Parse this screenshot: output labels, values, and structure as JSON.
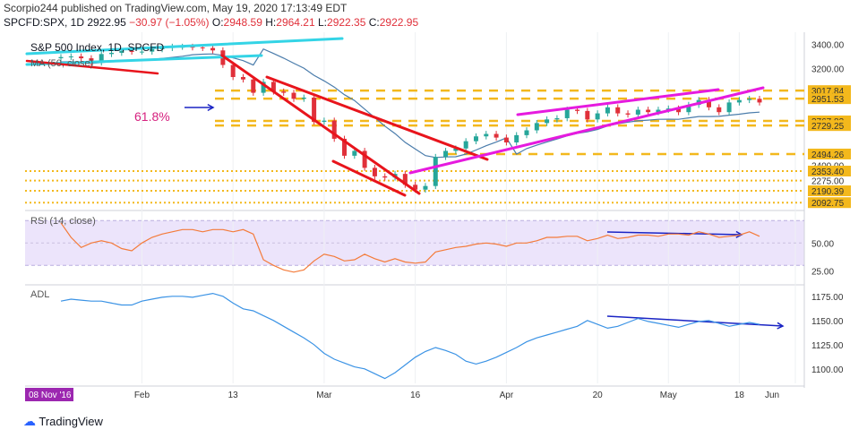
{
  "header": {
    "published": "Scorpio244 published on TradingView.com, May 19, 2020 17:13:49 EDT",
    "symbol": "SPCFD:SPX, 1D",
    "price": "2922.95",
    "change": "−30.97 (−1.05%)",
    "o": "O:",
    "o_val": "2948.59",
    "h": "H:",
    "h_val": "2964.21",
    "l": "L:",
    "l_val": "2922.35",
    "c": "C:",
    "c_val": "2922.95"
  },
  "footer": {
    "brand": "TradingView"
  },
  "colors": {
    "up": "#26a69a",
    "down": "#e0303a",
    "trend_red": "#e8141c",
    "trend_magenta": "#e61adf",
    "trend_cyan": "#34d4e6",
    "level_gold": "#f3b81c",
    "ma_line": "#4a7cab",
    "rsi_line": "#f47b3a",
    "rsi_band": "#ece4fb",
    "adl_line": "#3b93e5",
    "arrow_blue": "#1a24c4",
    "fib_text": "#d6217f",
    "date_badge": "#9c27b0"
  },
  "chart_data": [
    {
      "type": "candlestick",
      "title": "S&P 500 Index, 1D, SPCFD",
      "indicator_label": "MA (50, close)",
      "annotation": "61.8%",
      "price_levels": [
        "3400.00",
        "3200.00",
        "3017.84",
        "2951.53",
        "2767.83",
        "2729.25",
        "2494.26",
        "2400.00",
        "2353.40",
        "2275.00",
        "2190.39",
        "2092.75"
      ],
      "x_ticks": [
        "Feb",
        "13",
        "Mar",
        "16",
        "Apr",
        "20",
        "May",
        "18",
        "Jun"
      ],
      "date_badge": "08 Nov '16",
      "ylim": [
        2050,
        3500
      ],
      "closes": [
        3295,
        3300,
        3285,
        3250,
        3320,
        3330,
        3345,
        3340,
        3340,
        3360,
        3370,
        3380,
        3380,
        3375,
        3370,
        3350,
        3230,
        3130,
        3110,
        3000,
        3090,
        3010,
        3000,
        2950,
        2960,
        2760,
        2770,
        2620,
        2480,
        2520,
        2380,
        2310,
        2300,
        2330,
        2240,
        2200,
        2230,
        2470,
        2520,
        2540,
        2600,
        2640,
        2660,
        2630,
        2590,
        2650,
        2690,
        2750,
        2780,
        2790,
        2860,
        2850,
        2780,
        2830,
        2880,
        2830,
        2820,
        2860,
        2840,
        2860,
        2870,
        2840,
        2900,
        2940,
        2880,
        2840,
        2920,
        2940,
        2950,
        2920
      ]
    },
    {
      "type": "line",
      "title": "RSI (14, close)",
      "ylim": [
        15,
        75
      ],
      "y_ticks": [
        "50.00",
        "25.00"
      ],
      "band": [
        30,
        70
      ],
      "values": [
        68,
        55,
        46,
        50,
        52,
        50,
        45,
        43,
        50,
        55,
        58,
        60,
        62,
        62,
        60,
        62,
        62,
        60,
        62,
        58,
        35,
        30,
        26,
        24,
        26,
        34,
        40,
        38,
        34,
        35,
        40,
        36,
        33,
        36,
        33,
        32,
        33,
        42,
        44,
        46,
        47,
        49,
        50,
        49,
        47,
        50,
        50,
        52,
        55,
        55,
        56,
        56,
        52,
        54,
        57,
        54,
        55,
        57,
        57,
        56,
        58,
        58,
        57,
        60,
        58,
        55,
        56,
        57,
        60,
        56
      ]
    },
    {
      "type": "line",
      "title": "ADL",
      "ylim": [
        1085,
        1185
      ],
      "y_ticks": [
        "1175.00",
        "1150.00",
        "1125.00",
        "1100.00"
      ],
      "values": [
        1170,
        1172,
        1171,
        1170,
        1170,
        1168,
        1166,
        1166,
        1170,
        1172,
        1174,
        1175,
        1175,
        1174,
        1176,
        1178,
        1175,
        1168,
        1162,
        1160,
        1155,
        1150,
        1144,
        1138,
        1132,
        1125,
        1116,
        1110,
        1106,
        1102,
        1100,
        1095,
        1090,
        1096,
        1104,
        1112,
        1118,
        1122,
        1119,
        1115,
        1108,
        1105,
        1108,
        1112,
        1117,
        1122,
        1128,
        1132,
        1135,
        1138,
        1141,
        1144,
        1150,
        1146,
        1142,
        1144,
        1148,
        1152,
        1149,
        1147,
        1145,
        1143,
        1146,
        1149,
        1150,
        1147,
        1144,
        1146,
        1148,
        1146
      ]
    }
  ]
}
